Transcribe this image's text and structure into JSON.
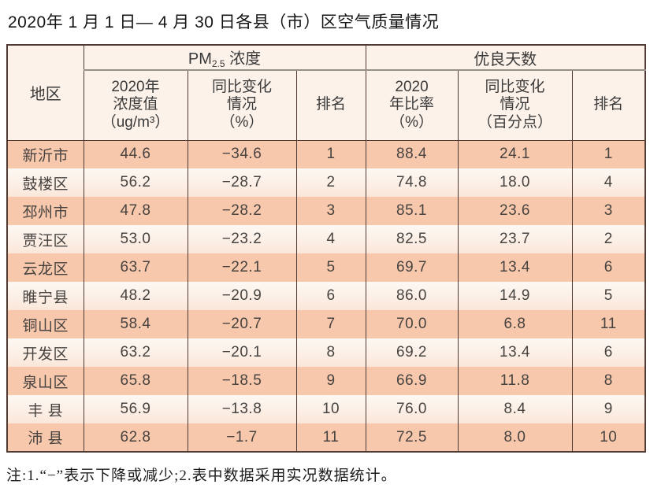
{
  "title": "2020年 1 月 1 日— 4 月 30 日各县（市）区空气质量情况",
  "table": {
    "header": {
      "region": "地区",
      "pm25_group": {
        "prefix": "PM",
        "sub": "2.5",
        "label": " 浓度"
      },
      "good_days_group": "优良天数",
      "sub_headers": {
        "pm25_value": [
          "2020年",
          "浓度值",
          "（ug/m³）"
        ],
        "pm25_change": [
          "同比变化",
          "情况",
          "（%）"
        ],
        "pm25_rank": "排名",
        "good_ratio": [
          "2020",
          "年比率",
          "（%）"
        ],
        "good_change": [
          "同比变化",
          "情况",
          "（百分点）"
        ],
        "good_rank": "排名"
      }
    },
    "rows": [
      {
        "region": "新沂市",
        "pm25_value": "44.6",
        "pm25_change": "−34.6",
        "pm25_rank": "1",
        "good_ratio": "88.4",
        "good_change": "24.1",
        "good_rank": "1"
      },
      {
        "region": "鼓楼区",
        "pm25_value": "56.2",
        "pm25_change": "−28.7",
        "pm25_rank": "2",
        "good_ratio": "74.8",
        "good_change": "18.0",
        "good_rank": "4"
      },
      {
        "region": "邳州市",
        "pm25_value": "47.8",
        "pm25_change": "−28.2",
        "pm25_rank": "3",
        "good_ratio": "85.1",
        "good_change": "23.6",
        "good_rank": "3"
      },
      {
        "region": "贾汪区",
        "pm25_value": "53.0",
        "pm25_change": "−23.2",
        "pm25_rank": "4",
        "good_ratio": "82.5",
        "good_change": "23.7",
        "good_rank": "2"
      },
      {
        "region": "云龙区",
        "pm25_value": "63.7",
        "pm25_change": "−22.1",
        "pm25_rank": "5",
        "good_ratio": "69.7",
        "good_change": "13.4",
        "good_rank": "6"
      },
      {
        "region": "睢宁县",
        "pm25_value": "48.2",
        "pm25_change": "−20.9",
        "pm25_rank": "6",
        "good_ratio": "86.0",
        "good_change": "14.9",
        "good_rank": "5"
      },
      {
        "region": "铜山区",
        "pm25_value": "58.4",
        "pm25_change": "−20.7",
        "pm25_rank": "7",
        "good_ratio": "70.0",
        "good_change": "6.8",
        "good_rank": "11"
      },
      {
        "region": "开发区",
        "pm25_value": "63.2",
        "pm25_change": "−20.1",
        "pm25_rank": "8",
        "good_ratio": "69.2",
        "good_change": "13.4",
        "good_rank": "6"
      },
      {
        "region": "泉山区",
        "pm25_value": "65.8",
        "pm25_change": "−18.5",
        "pm25_rank": "9",
        "good_ratio": "66.9",
        "good_change": "11.8",
        "good_rank": "8"
      },
      {
        "region": "丰 县",
        "pm25_value": "56.9",
        "pm25_change": "−13.8",
        "pm25_rank": "10",
        "good_ratio": "76.0",
        "good_change": "8.4",
        "good_rank": "9"
      },
      {
        "region": "沛 县",
        "pm25_value": "62.8",
        "pm25_change": "−1.7",
        "pm25_rank": "11",
        "good_ratio": "72.5",
        "good_change": "8.0",
        "good_rank": "10"
      }
    ]
  },
  "note": "注:1.“−”表示下降或减少;2.表中数据采用实况数据统计。",
  "colors": {
    "row_salmon": "#f8c8ac",
    "row_light": "#fcefe5",
    "header_bg": "#fdf2ea",
    "border": "#4f3b33"
  }
}
